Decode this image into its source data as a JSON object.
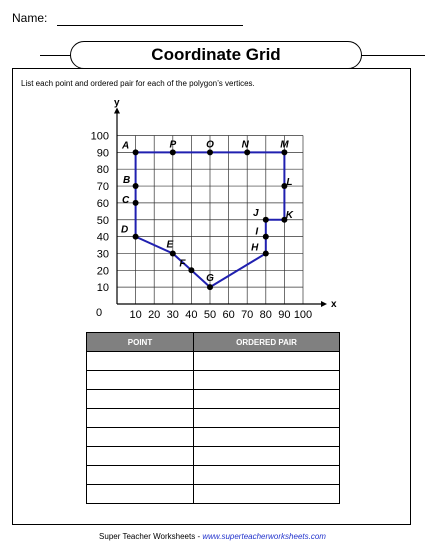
{
  "header": {
    "name_label": "Name:"
  },
  "title": "Coordinate Grid",
  "instructions": "List each point and ordered pair for each of the polygon’s vertices.",
  "chart_data": {
    "type": "scatter",
    "xlabel": "x",
    "ylabel": "y",
    "xlim": [
      0,
      100
    ],
    "ylim": [
      0,
      100
    ],
    "grid": true,
    "origin_label": "0",
    "x_ticks": [
      "10",
      "20",
      "30",
      "40",
      "50",
      "60",
      "70",
      "80",
      "90",
      "100"
    ],
    "y_ticks": [
      "10",
      "20",
      "30",
      "40",
      "50",
      "60",
      "70",
      "80",
      "90",
      "100"
    ],
    "line_color": "#2020b0",
    "points": [
      {
        "label": "A",
        "x": 10,
        "y": 90
      },
      {
        "label": "P",
        "x": 30,
        "y": 90
      },
      {
        "label": "O",
        "x": 50,
        "y": 90
      },
      {
        "label": "N",
        "x": 70,
        "y": 90
      },
      {
        "label": "M",
        "x": 90,
        "y": 90
      },
      {
        "label": "L",
        "x": 90,
        "y": 70
      },
      {
        "label": "K",
        "x": 90,
        "y": 50
      },
      {
        "label": "J",
        "x": 80,
        "y": 50
      },
      {
        "label": "I",
        "x": 80,
        "y": 40
      },
      {
        "label": "H",
        "x": 80,
        "y": 30
      },
      {
        "label": "G",
        "x": 50,
        "y": 10
      },
      {
        "label": "F",
        "x": 40,
        "y": 20
      },
      {
        "label": "E",
        "x": 30,
        "y": 30
      },
      {
        "label": "D",
        "x": 10,
        "y": 40
      },
      {
        "label": "C",
        "x": 10,
        "y": 60
      },
      {
        "label": "B",
        "x": 10,
        "y": 70
      }
    ]
  },
  "table": {
    "headers": [
      "POINT",
      "ORDERED PAIR"
    ],
    "rows": [
      [
        "",
        ""
      ],
      [
        "",
        ""
      ],
      [
        "",
        ""
      ],
      [
        "",
        ""
      ],
      [
        "",
        ""
      ],
      [
        "",
        ""
      ],
      [
        "",
        ""
      ],
      [
        "",
        ""
      ]
    ]
  },
  "footer": {
    "text": "Super Teacher Worksheets - ",
    "url": "www.superteacherworksheets.com"
  }
}
